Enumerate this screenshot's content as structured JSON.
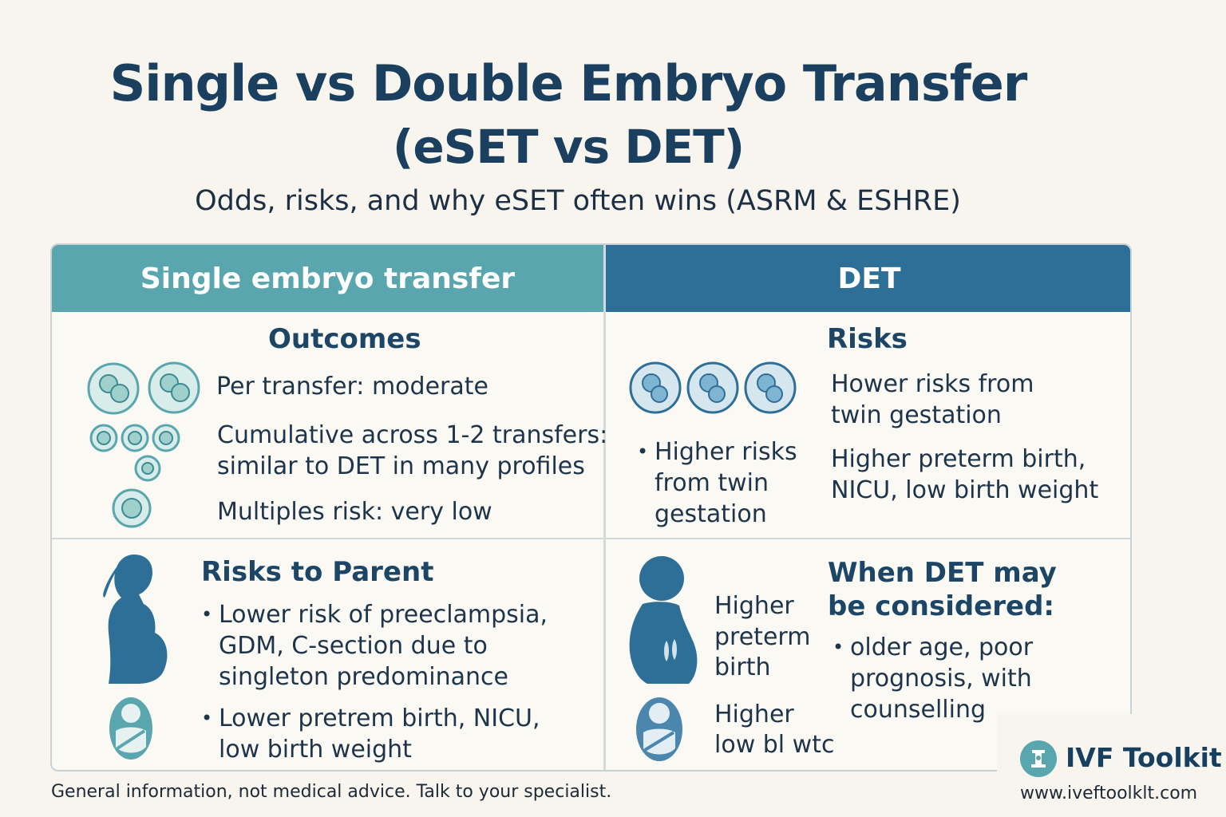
{
  "header": {
    "title_line1": "Single vs Double Embryo Transfer",
    "title_line2": "(eSET vs DET)",
    "subtitle": "Odds, risks, and why eSET often wins (ASRM & ESHRE)"
  },
  "table": {
    "left_header": "Single embryo transfer",
    "right_header": "DET",
    "top_left": {
      "heading": "Outcomes",
      "per_transfer": "Per transfer: moderate",
      "cumulative_line1": "Cumulative across 1-2 transfers:",
      "cumulative_line2": "similar to DET in many profiles",
      "multiples": "Multiples risk: very low"
    },
    "top_right": {
      "heading": "Risks",
      "bullet_line1": "Higher risks",
      "bullet_line2": "from twin",
      "bullet_line3": "gestation",
      "hower_line1": "Hower risks from",
      "hower_line2": "twin gestation",
      "preterm_line1": "Higher preterm birth,",
      "preterm_line2": "NICU, low birth weight"
    },
    "bottom_left": {
      "heading": "Risks to Parent",
      "b1_line1": "Lower risk of preeclampsia,",
      "b1_line2": "GDM, C-section due to",
      "b1_line3": "singleton predominance",
      "b2_line1": "Lower pretrem birth, NICU,",
      "b2_line2": "low birth weight"
    },
    "bottom_right": {
      "higher_line1": "Higher",
      "higher_line2": "preterm",
      "higher_line3": "birth",
      "higherlow_line1": "Higher",
      "higherlow_line2": "low bl wtc",
      "heading_line1": "When DET may",
      "heading_line2": "be considered:",
      "b_line1": "older age, poor",
      "b_line2": "prognosis, with",
      "b_line3": "counselling"
    }
  },
  "footer": {
    "disclaimer": "General information, not medical advice. Talk to your specialist.",
    "brand_name": "IVF Toolkit",
    "brand_url": "www.iveftoolklt.com"
  },
  "colors": {
    "teal": "#5aa6ae",
    "blue": "#2e6f98",
    "navy": "#1a3f5f",
    "background": "#f8f5ee"
  },
  "icons": [
    "embryo-icon",
    "pregnant-person-icon",
    "swaddled-baby-icon",
    "twins-pregnancy-icon",
    "brand-logo-icon"
  ]
}
